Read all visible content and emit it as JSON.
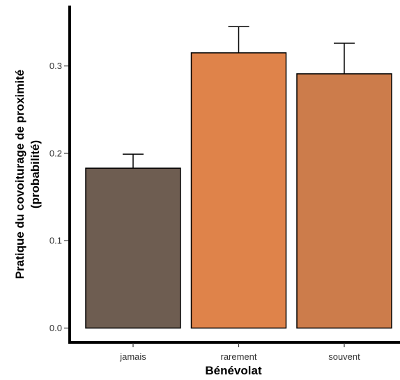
{
  "chart_data": {
    "type": "bar",
    "categories": [
      "jamais",
      "rarement",
      "souvent"
    ],
    "values": [
      0.183,
      0.315,
      0.291
    ],
    "error_upper": [
      0.199,
      0.345,
      0.326
    ],
    "bar_colors": [
      "#6e5d51",
      "#df834a",
      "#cc7c4b"
    ],
    "xlabel": "Bénévolat",
    "ylabel_line1": "Pratique du covoiturage de proximité",
    "ylabel_line2": "(probabilité)",
    "ylim": [
      0,
      0.35
    ],
    "yticks": [
      0.0,
      0.1,
      0.2,
      0.3
    ],
    "ytick_labels": [
      "0.0",
      "0.1",
      "0.2",
      "0.3"
    ],
    "grid": false,
    "legend": "none"
  }
}
